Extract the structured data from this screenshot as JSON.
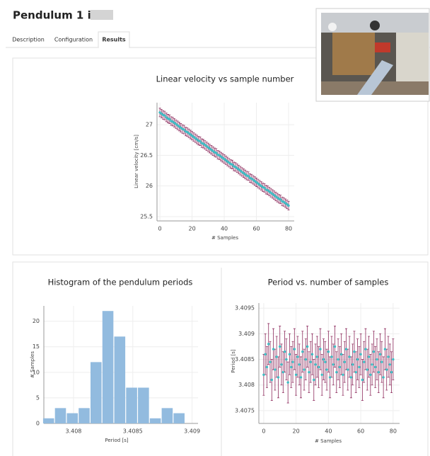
{
  "header": {
    "title": "Pendulum 1 in"
  },
  "tabs": [
    "Description",
    "Configuration",
    "Results"
  ],
  "chart_data": [
    {
      "type": "errorbar",
      "title": "Linear velocity vs sample number",
      "x_label": "# Samples",
      "y_label": "Linear velocity [cm/s]",
      "x": [
        0,
        1,
        2,
        3,
        4,
        5,
        6,
        7,
        8,
        9,
        10,
        11,
        12,
        13,
        14,
        15,
        16,
        17,
        18,
        19,
        20,
        21,
        22,
        23,
        24,
        25,
        26,
        27,
        28,
        29,
        30,
        31,
        32,
        33,
        34,
        35,
        36,
        37,
        38,
        39,
        40,
        41,
        42,
        43,
        44,
        45,
        46,
        47,
        48,
        49,
        50,
        51,
        52,
        53,
        54,
        55,
        56,
        57,
        58,
        59,
        60,
        61,
        62,
        63,
        64,
        65,
        66,
        67,
        68,
        69,
        70,
        71,
        72,
        73,
        74,
        75,
        76,
        77,
        78,
        79,
        80
      ],
      "values": [
        27.2,
        27.18,
        27.16,
        27.15,
        27.12,
        27.1,
        27.09,
        27.06,
        27.05,
        27.03,
        27.01,
        26.99,
        26.97,
        26.95,
        26.93,
        26.92,
        26.89,
        26.88,
        26.86,
        26.84,
        26.82,
        26.8,
        26.78,
        26.76,
        26.74,
        26.73,
        26.7,
        26.69,
        26.67,
        26.65,
        26.63,
        26.61,
        26.59,
        26.57,
        26.55,
        26.54,
        26.51,
        26.5,
        26.48,
        26.46,
        26.44,
        26.42,
        26.4,
        26.38,
        26.36,
        26.35,
        26.32,
        26.31,
        26.29,
        26.27,
        26.25,
        26.23,
        26.21,
        26.19,
        26.17,
        26.16,
        26.13,
        26.12,
        26.1,
        26.08,
        26.06,
        26.04,
        26.02,
        26.0,
        25.98,
        25.97,
        25.94,
        25.93,
        25.91,
        25.89,
        25.87,
        25.85,
        25.83,
        25.81,
        25.79,
        25.78,
        25.75,
        25.74,
        25.72,
        25.7,
        25.68
      ],
      "error": 0.07,
      "color": "#3dbdc4",
      "error_color": "#8e2d5e",
      "xlim": [
        -1.8,
        83.5
      ],
      "xticks": [
        0,
        20,
        40,
        60,
        80
      ],
      "ylim": [
        25.43,
        27.36
      ],
      "yticks": [
        25.5,
        26,
        26.5,
        27
      ],
      "grid": true
    },
    {
      "type": "histogram",
      "title": "Histogram of the pendulum periods",
      "x_label": "Period [s]",
      "y_label": "# Samples",
      "bins": [
        3.40774,
        3.40784,
        3.40794,
        3.40804,
        3.40814,
        3.40824,
        3.40834,
        3.40844,
        3.40854,
        3.40864,
        3.40874,
        3.40884,
        3.40894
      ],
      "values": [
        1,
        3,
        2,
        3,
        12,
        22,
        17,
        7,
        7,
        1,
        3,
        2
      ],
      "color": "#92bbdf",
      "xlim": [
        3.40775,
        3.40905
      ],
      "xticks": [
        3.408,
        3.4085,
        3.409
      ],
      "ylim": [
        0,
        23
      ],
      "yticks": [
        0,
        5,
        10,
        15,
        20
      ],
      "grid": true
    },
    {
      "type": "errorbar",
      "title": "Period vs. number of samples",
      "x_label": "# Samples",
      "y_label": "Period [s]",
      "x": [
        0,
        1,
        2,
        3,
        4,
        5,
        6,
        7,
        8,
        9,
        10,
        11,
        12,
        13,
        14,
        15,
        16,
        17,
        18,
        19,
        20,
        21,
        22,
        23,
        24,
        25,
        26,
        27,
        28,
        29,
        30,
        31,
        32,
        33,
        34,
        35,
        36,
        37,
        38,
        39,
        40,
        41,
        42,
        43,
        44,
        45,
        46,
        47,
        48,
        49,
        50,
        51,
        52,
        53,
        54,
        55,
        56,
        57,
        58,
        59,
        60,
        61,
        62,
        63,
        64,
        65,
        66,
        67,
        68,
        69,
        70,
        71,
        72,
        73,
        74,
        75,
        76,
        77,
        78,
        79,
        80
      ],
      "values": [
        3.4082,
        3.4086,
        3.40835,
        3.4088,
        3.40845,
        3.4081,
        3.4087,
        3.4083,
        3.40855,
        3.40815,
        3.40875,
        3.4084,
        3.40825,
        3.40865,
        3.4085,
        3.40805,
        3.4086,
        3.40835,
        3.40845,
        3.4087,
        3.4082,
        3.40855,
        3.4084,
        3.40815,
        3.40865,
        3.4083,
        3.4085,
        3.40875,
        3.40825,
        3.40845,
        3.4086,
        3.4081,
        3.4084,
        3.40855,
        3.40835,
        3.4087,
        3.4082,
        3.4085,
        3.40845,
        3.4083,
        3.40865,
        3.40815,
        3.40855,
        3.4084,
        3.40875,
        3.40825,
        3.4085,
        3.40835,
        3.4086,
        3.4082,
        3.40845,
        3.4087,
        3.4083,
        3.40855,
        3.40815,
        3.4084,
        3.40865,
        3.40825,
        3.4085,
        3.40835,
        3.4086,
        3.4081,
        3.40845,
        3.4087,
        3.4083,
        3.40855,
        3.4082,
        3.4084,
        3.40865,
        3.40835,
        3.4085,
        3.40825,
        3.4086,
        3.40845,
        3.40815,
        3.4087,
        3.4083,
        3.40855,
        3.4084,
        3.40825,
        3.4085
      ],
      "error": 0.0004,
      "color": "#3dbdc4",
      "error_color": "#8e2d5e",
      "xlim": [
        -3,
        84
      ],
      "xticks": [
        0,
        20,
        40,
        60,
        80
      ],
      "ylim": [
        3.40725,
        3.4096
      ],
      "yticks": [
        3.4075,
        3.408,
        3.4085,
        3.409,
        3.4095
      ],
      "grid": true
    }
  ]
}
